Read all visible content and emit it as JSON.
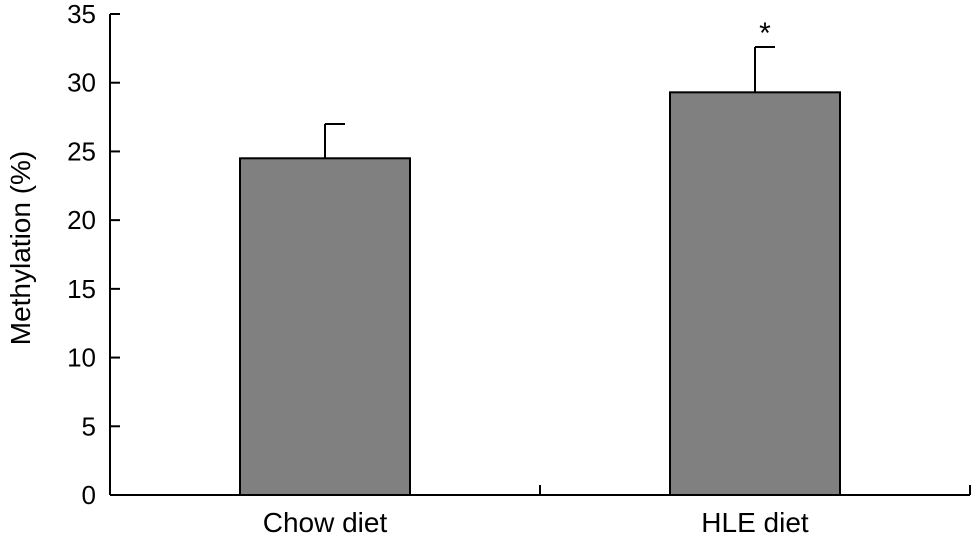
{
  "chart_data": {
    "type": "bar",
    "categories": [
      "Chow diet",
      "HLE diet"
    ],
    "values": [
      24.5,
      29.3
    ],
    "error_upper": [
      2.5,
      3.3
    ],
    "annotations": [
      "",
      "*"
    ],
    "xlabel": "",
    "ylabel": "Methylation (%)",
    "ylim": [
      0,
      35
    ],
    "yticks": [
      0,
      5,
      10,
      15,
      20,
      25,
      30,
      35
    ],
    "bar_color": "#808080",
    "grid": false,
    "legend": "none"
  }
}
